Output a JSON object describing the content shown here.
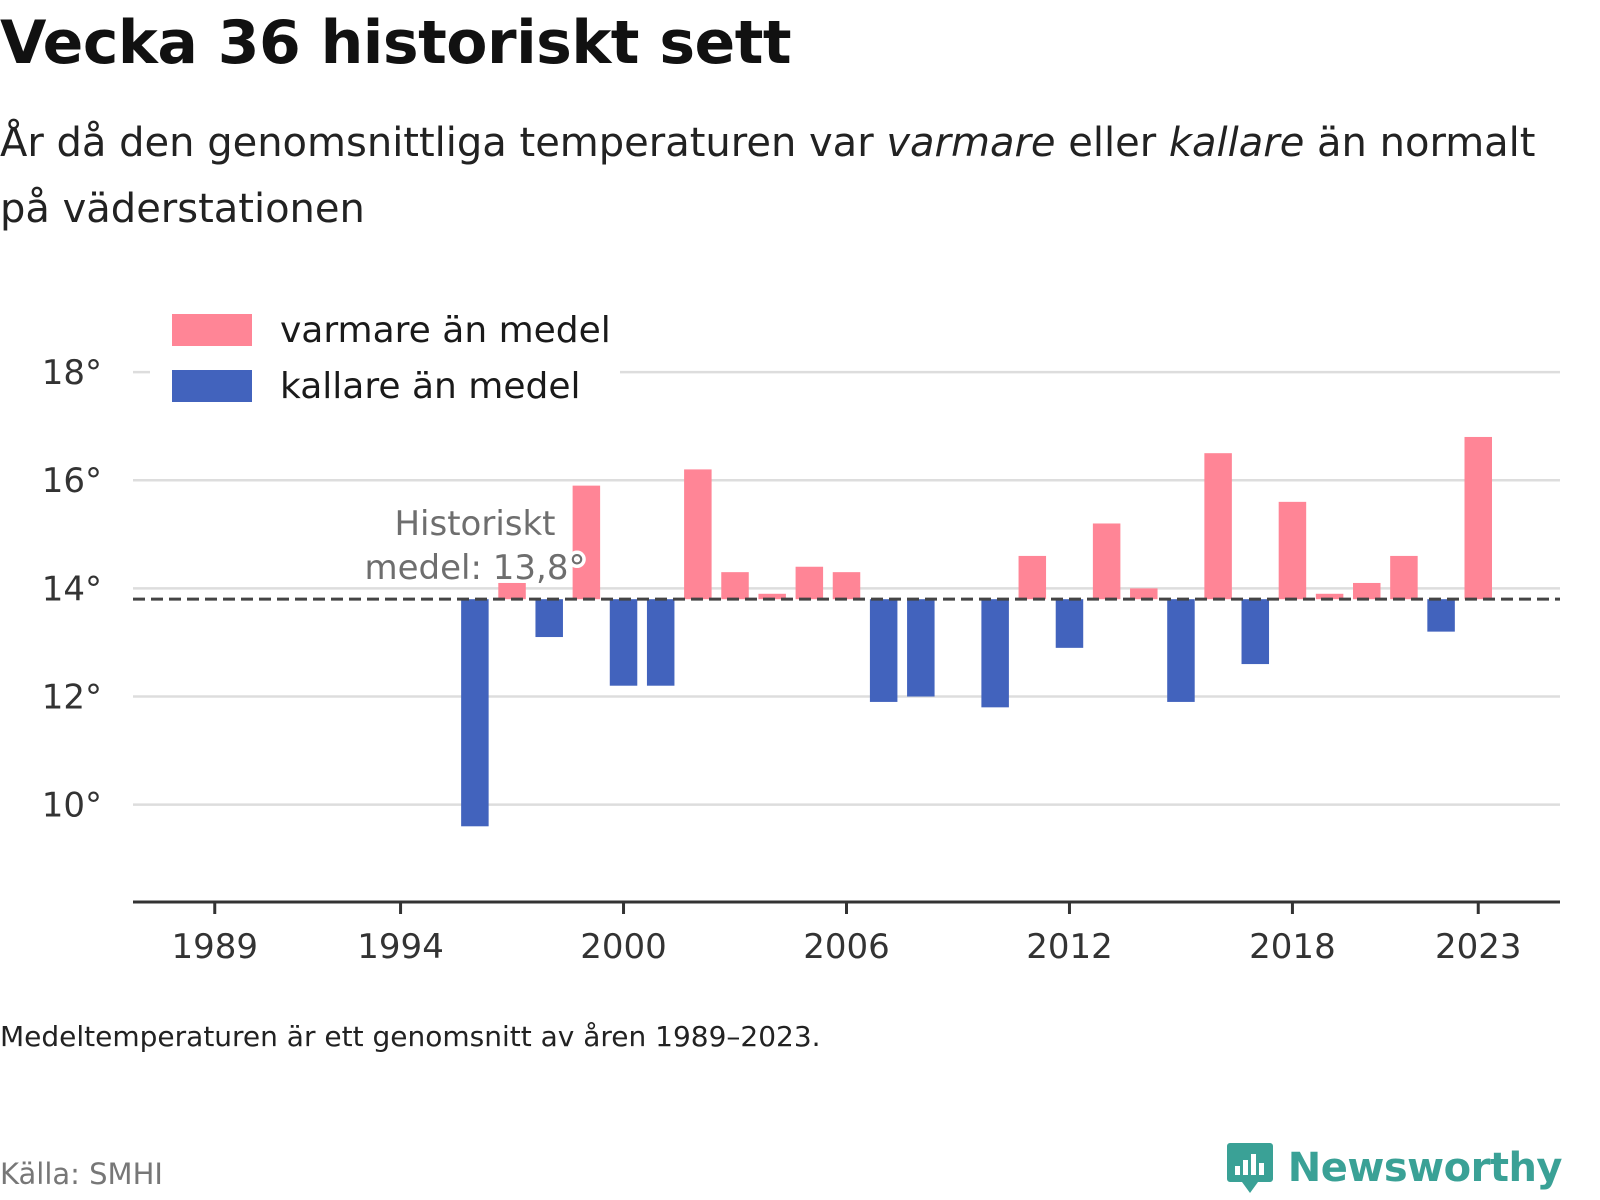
{
  "header": {
    "title": "Vecka 36 historiskt sett",
    "subtitle_before": "År då den genomsnittliga temperaturen var ",
    "subtitle_warm": "varmare",
    "subtitle_middle": " eller ",
    "subtitle_cold": "kallare",
    "subtitle_after": " än normalt på väderstationen"
  },
  "colors": {
    "warm": "#ff8596",
    "cold": "#4263bd",
    "grid": "#dddddd",
    "axis": "#333333",
    "mean_line": "#444444",
    "brand": "#3aa196"
  },
  "chart_data": {
    "type": "bar",
    "baseline": 13.8,
    "baseline_label": [
      "Historiskt",
      "medel: 13,8°"
    ],
    "x": [
      1996,
      1997,
      1998,
      1999,
      2000,
      2001,
      2002,
      2003,
      2004,
      2005,
      2006,
      2007,
      2008,
      2010,
      2011,
      2012,
      2013,
      2014,
      2015,
      2016,
      2017,
      2018,
      2019,
      2020,
      2021,
      2022,
      2023
    ],
    "values": [
      9.6,
      14.1,
      13.1,
      15.9,
      12.2,
      12.2,
      16.2,
      14.3,
      13.9,
      14.4,
      14.3,
      11.9,
      12.0,
      11.8,
      14.6,
      12.9,
      15.2,
      14.0,
      11.9,
      16.5,
      12.6,
      15.6,
      13.9,
      14.1,
      14.6,
      13.2,
      16.8
    ],
    "series": [
      {
        "name": "varmare än medel",
        "color": "#ff8596"
      },
      {
        "name": "kallare än medel",
        "color": "#4263bd"
      }
    ],
    "ylim": [
      8.2,
      19
    ],
    "y_ticks": [
      10,
      12,
      14,
      16,
      18
    ],
    "y_tick_labels": [
      "10°",
      "12°",
      "14°",
      "16°",
      "18°"
    ],
    "xlim": [
      1986.8,
      2025.2
    ],
    "x_ticks": [
      1989,
      1994,
      2000,
      2006,
      2012,
      2018,
      2023
    ],
    "x_tick_labels": [
      "1989",
      "1994",
      "2000",
      "2006",
      "2012",
      "2018",
      "2023"
    ],
    "grid": true,
    "legend_position": "top-left"
  },
  "footer": {
    "note": "Medeltemperaturen är ett genomsnitt av åren 1989–2023.",
    "source": "Källa: SMHI",
    "brand": "Newsworthy"
  }
}
